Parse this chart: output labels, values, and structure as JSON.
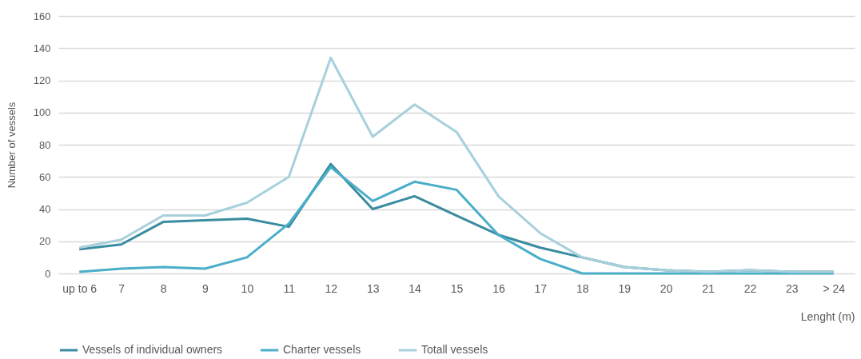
{
  "chart_data": {
    "type": "line",
    "xlabel": "Lenght (m)",
    "ylabel": "Number of vessels",
    "categories": [
      "up to 6",
      "7",
      "8",
      "9",
      "10",
      "11",
      "12",
      "13",
      "14",
      "15",
      "16",
      "17",
      "18",
      "19",
      "20",
      "21",
      "22",
      "23",
      "> 24"
    ],
    "series": [
      {
        "name": "Vessels of individual owners",
        "color": "#3a8ca0",
        "values": [
          15,
          18,
          32,
          33,
          34,
          29,
          68,
          40,
          48,
          36,
          24,
          16,
          10,
          4,
          2,
          1,
          2,
          1,
          1
        ]
      },
      {
        "name": "Charter vessels",
        "color": "#4aaec8",
        "values": [
          1,
          3,
          4,
          3,
          10,
          31,
          66,
          45,
          57,
          52,
          24,
          9,
          0,
          0,
          0,
          0,
          0,
          0,
          0
        ]
      },
      {
        "name": "Totall vessels",
        "color": "#a8d0dc",
        "values": [
          16,
          21,
          36,
          36,
          44,
          60,
          134,
          85,
          105,
          88,
          48,
          25,
          10,
          4,
          2,
          1,
          2,
          1,
          1
        ]
      }
    ],
    "ylim": [
      0,
      160
    ],
    "yticks": [
      0,
      20,
      40,
      60,
      80,
      100,
      120,
      140,
      160
    ],
    "grid": "y",
    "legend": "bottom",
    "marker": "none",
    "line_style": "solid"
  }
}
